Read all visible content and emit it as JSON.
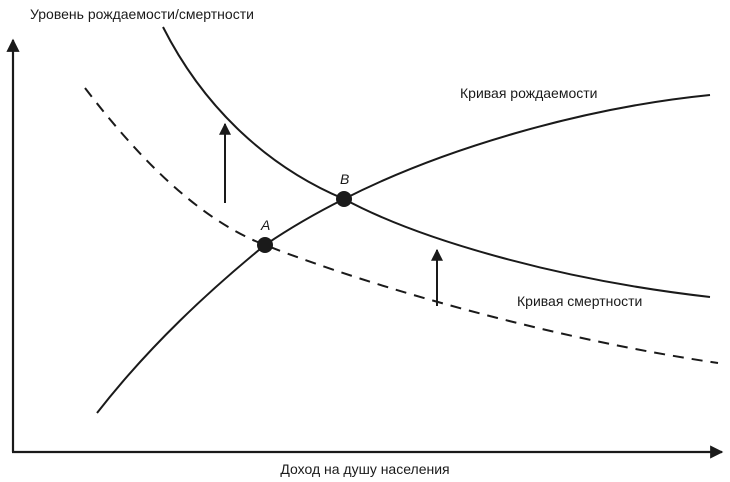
{
  "axes": {
    "y_label": "Уровень рождаемости/смертности",
    "x_label": "Доход на душу населения"
  },
  "curves": {
    "birth_label": "Кривая рождаемости",
    "death_label": "Кривая смертности"
  },
  "points": {
    "a_label": "A",
    "b_label": "B"
  }
}
